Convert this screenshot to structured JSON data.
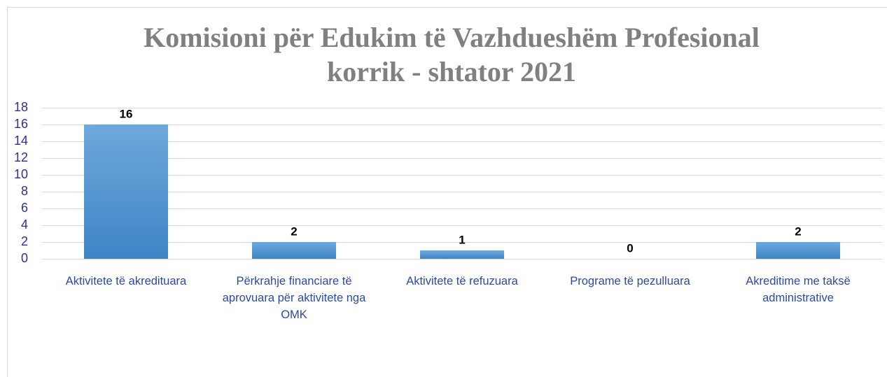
{
  "chart_data": {
    "type": "bar",
    "title": "Komisioni për Edukim të Vazhdueshëm Profesional",
    "subtitle": "korrik - shtator 2021",
    "categories": [
      "Aktivitete të akredituara",
      "Përkrahje financiare të aprovuara për aktivitete nga OMK",
      "Aktivitete të refuzuara",
      "Programe të pezulluara",
      "Akreditime me taksë administrative"
    ],
    "values": [
      16,
      2,
      1,
      0,
      2
    ],
    "color": "#5b9bd5",
    "ylim": [
      0,
      18
    ],
    "yticks": [
      0,
      2,
      4,
      6,
      8,
      10,
      12,
      14,
      16,
      18
    ],
    "grid": true
  }
}
